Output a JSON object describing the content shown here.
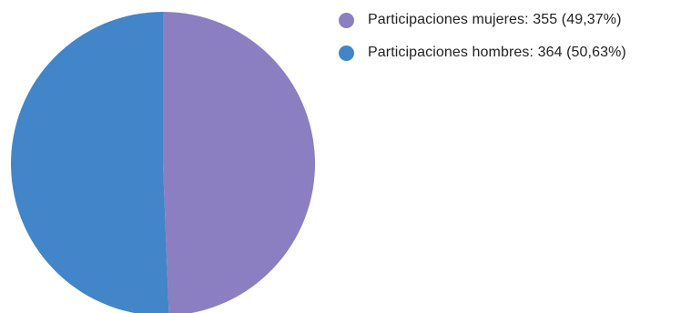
{
  "chart_data": {
    "type": "pie",
    "slices": [
      {
        "label": "Participaciones mujeres: 355 (49,37%)",
        "value": 355,
        "percent": 49.37,
        "color": "#8b7fc2"
      },
      {
        "label": "Participaciones hombres: 364 (50,63%)",
        "value": 364,
        "percent": 50.63,
        "color": "#4285c8"
      }
    ],
    "start_angle_deg": 0,
    "direction": "clockwise",
    "legend_position": "top-right"
  }
}
